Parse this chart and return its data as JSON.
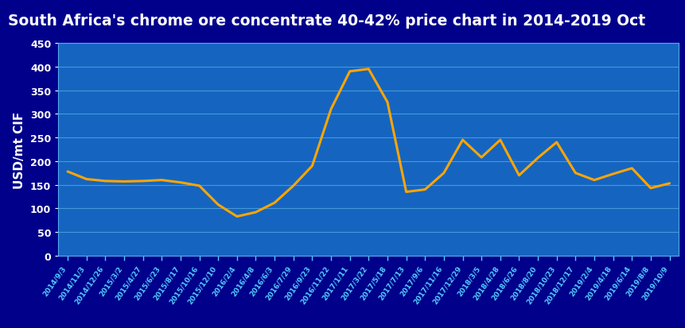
{
  "title": "South Africa's chrome ore concentrate 40-42% price chart in 2014-2019 Oct",
  "ylabel": "USD/mt CIF",
  "plot_bg_color": "#1565C0",
  "title_bg_color": "#00008B",
  "line_color": "#FFA500",
  "line_width": 2.2,
  "grid_color": "#4499DD",
  "ylim": [
    0,
    450
  ],
  "yticks": [
    0,
    50,
    100,
    150,
    200,
    250,
    300,
    350,
    400,
    450
  ],
  "xtick_labels": [
    "2014/9/3",
    "2014/11/3",
    "2014/12/26",
    "2015/3/2",
    "2015/4/27",
    "2015/6/23",
    "2015/8/17",
    "2015/10/16",
    "2015/12/10",
    "2016/2/4",
    "2016/4/8",
    "2016/6/3",
    "2016/7/29",
    "2016/9/23",
    "2016/11/22",
    "2017/1/11",
    "2017/3/22",
    "2017/5/18",
    "2017/7/13",
    "2017/9/6",
    "2017/11/16",
    "2017/12/29",
    "2018/3/5",
    "2018/4/28",
    "2018/6/26",
    "2018/8/20",
    "2018/10/23",
    "2018/12/17",
    "2019/2/4",
    "2019/4/18",
    "2019/6/14",
    "2019/8/8",
    "2019/10/9"
  ],
  "values": [
    178,
    162,
    158,
    157,
    158,
    160,
    155,
    148,
    108,
    83,
    92,
    112,
    148,
    190,
    310,
    390,
    395,
    325,
    135,
    140,
    175,
    245,
    208,
    245,
    170,
    207,
    240,
    175,
    160,
    173,
    185,
    143,
    153
  ]
}
